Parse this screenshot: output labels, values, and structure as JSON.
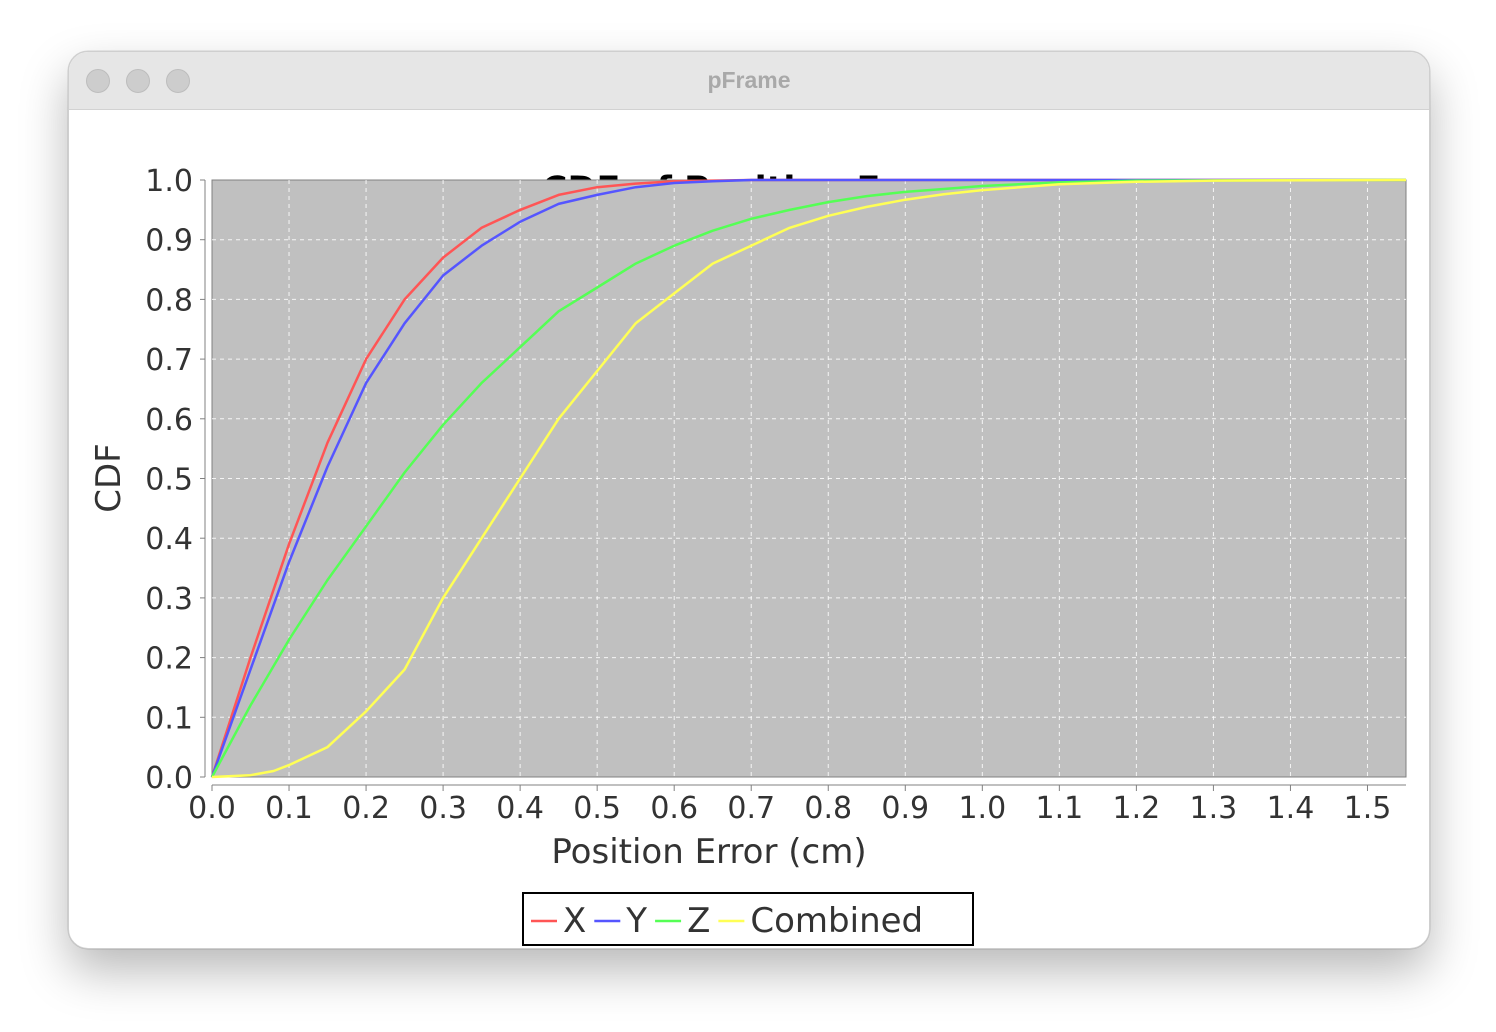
{
  "window": {
    "title": "pFrame",
    "controls": [
      "close-icon",
      "minimize-icon",
      "zoom-icon"
    ]
  },
  "chart_data": {
    "type": "line",
    "title": "CDF of Position Error",
    "xlabel": "Position Error (cm)",
    "ylabel": "CDF",
    "xlim": [
      0,
      1.55
    ],
    "ylim": [
      0,
      1.0
    ],
    "xticks": [
      "0.0",
      "0.1",
      "0.2",
      "0.3",
      "0.4",
      "0.5",
      "0.6",
      "0.7",
      "0.8",
      "0.9",
      "1.0",
      "1.1",
      "1.2",
      "1.3",
      "1.4",
      "1.5"
    ],
    "yticks": [
      "0.0",
      "0.1",
      "0.2",
      "0.3",
      "0.4",
      "0.5",
      "0.6",
      "0.7",
      "0.8",
      "0.9",
      "1.0"
    ],
    "grid": true,
    "legend_position": "bottom-center",
    "plot_background": "#c0c0c0",
    "series": [
      {
        "name": "X",
        "color": "#ff5555",
        "x": [
          0,
          0.05,
          0.1,
          0.15,
          0.2,
          0.25,
          0.3,
          0.35,
          0.4,
          0.45,
          0.5,
          0.55,
          0.6,
          0.65,
          0.7,
          0.8,
          1.0,
          1.55
        ],
        "y": [
          0,
          0.2,
          0.39,
          0.56,
          0.7,
          0.8,
          0.87,
          0.92,
          0.95,
          0.975,
          0.988,
          0.994,
          0.998,
          0.999,
          1.0,
          1.0,
          1.0,
          1.0
        ]
      },
      {
        "name": "Y",
        "color": "#5555ff",
        "x": [
          0,
          0.05,
          0.1,
          0.15,
          0.2,
          0.25,
          0.3,
          0.35,
          0.4,
          0.45,
          0.5,
          0.55,
          0.6,
          0.65,
          0.7,
          0.8,
          1.0,
          1.55
        ],
        "y": [
          0,
          0.18,
          0.36,
          0.52,
          0.66,
          0.76,
          0.84,
          0.89,
          0.93,
          0.96,
          0.975,
          0.988,
          0.995,
          0.998,
          1.0,
          1.0,
          1.0,
          1.0
        ]
      },
      {
        "name": "Z",
        "color": "#55ff55",
        "x": [
          0,
          0.05,
          0.1,
          0.15,
          0.2,
          0.25,
          0.3,
          0.35,
          0.4,
          0.45,
          0.5,
          0.55,
          0.6,
          0.65,
          0.7,
          0.75,
          0.8,
          0.85,
          0.9,
          0.95,
          1.0,
          1.1,
          1.2,
          1.55
        ],
        "y": [
          0,
          0.12,
          0.23,
          0.33,
          0.42,
          0.51,
          0.59,
          0.66,
          0.72,
          0.78,
          0.82,
          0.86,
          0.89,
          0.915,
          0.935,
          0.95,
          0.963,
          0.973,
          0.98,
          0.985,
          0.99,
          0.996,
          0.999,
          1.0
        ]
      },
      {
        "name": "Combined",
        "color": "#ffff55",
        "x": [
          0,
          0.05,
          0.08,
          0.1,
          0.15,
          0.2,
          0.25,
          0.3,
          0.35,
          0.4,
          0.45,
          0.5,
          0.55,
          0.6,
          0.65,
          0.7,
          0.75,
          0.8,
          0.85,
          0.9,
          0.95,
          1.0,
          1.1,
          1.2,
          1.3,
          1.55
        ],
        "y": [
          0,
          0.003,
          0.01,
          0.02,
          0.05,
          0.11,
          0.18,
          0.3,
          0.4,
          0.5,
          0.6,
          0.68,
          0.76,
          0.81,
          0.86,
          0.89,
          0.92,
          0.94,
          0.955,
          0.967,
          0.976,
          0.983,
          0.993,
          0.997,
          0.999,
          1.0
        ]
      }
    ]
  }
}
